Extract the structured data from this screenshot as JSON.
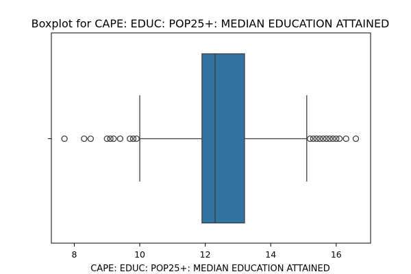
{
  "chart_data": {
    "type": "boxplot",
    "title": "Boxplot for CAPE: EDUC: POP25+: MEDIAN EDUCATION ATTAINED",
    "xlabel": "CAPE: EDUC: POP25+: MEDIAN EDUCATION ATTAINED",
    "ylabel": "",
    "orientation": "horizontal",
    "xlim": [
      7.3,
      17.05
    ],
    "xticks": [
      8,
      10,
      12,
      14,
      16
    ],
    "xtick_labels": [
      "8",
      "10",
      "12",
      "14",
      "16"
    ],
    "grid": false,
    "box": {
      "q1": 11.9,
      "median": 12.3,
      "q3": 13.2,
      "whisker_low": 10.0,
      "whisker_high": 15.1,
      "color": "#3274a1"
    },
    "outliers": [
      7.7,
      8.3,
      8.5,
      9.0,
      9.1,
      9.2,
      9.4,
      9.7,
      9.8,
      9.9,
      15.2,
      15.3,
      15.4,
      15.5,
      15.6,
      15.7,
      15.8,
      15.9,
      16.0,
      16.1,
      16.3,
      16.6
    ]
  }
}
